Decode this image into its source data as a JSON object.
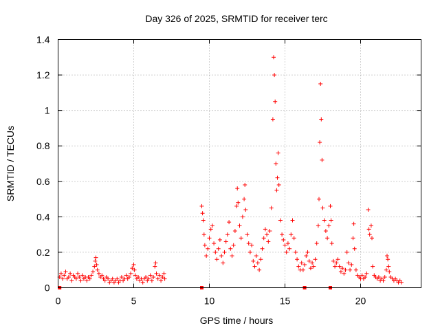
{
  "chart_data": {
    "type": "scatter",
    "title": "Day 326 of 2025, SRMTID for receiver terc",
    "xlabel": "GPS time / hours",
    "ylabel": "SRMTID / TECUs",
    "xlim": [
      0,
      24
    ],
    "ylim": [
      0,
      1.4
    ],
    "xticks": [
      0,
      5,
      10,
      15,
      20
    ],
    "xtick_labels": [
      "0",
      "5",
      "10",
      "15",
      "20"
    ],
    "yticks": [
      0,
      0.2,
      0.4,
      0.6,
      0.8,
      1.0,
      1.2,
      1.4
    ],
    "ytick_labels": [
      "0",
      "0.2",
      "0.4",
      "0.6",
      "0.8",
      "1",
      "1.2",
      "1.4"
    ],
    "grid": true,
    "marker": "+",
    "color": "#ff0000",
    "series": [
      {
        "name": "SRMTID",
        "points": [
          [
            0.1,
            0.06
          ],
          [
            0.2,
            0.08
          ],
          [
            0.3,
            0.05
          ],
          [
            0.4,
            0.07
          ],
          [
            0.5,
            0.09
          ],
          [
            0.6,
            0.05
          ],
          [
            0.7,
            0.06
          ],
          [
            0.8,
            0.08
          ],
          [
            0.9,
            0.04
          ],
          [
            1.0,
            0.07
          ],
          [
            1.1,
            0.06
          ],
          [
            1.2,
            0.05
          ],
          [
            1.3,
            0.08
          ],
          [
            1.4,
            0.06
          ],
          [
            1.5,
            0.04
          ],
          [
            1.6,
            0.07
          ],
          [
            1.7,
            0.05
          ],
          [
            1.8,
            0.06
          ],
          [
            1.9,
            0.04
          ],
          [
            2.0,
            0.06
          ],
          [
            2.1,
            0.05
          ],
          [
            2.2,
            0.07
          ],
          [
            2.3,
            0.09
          ],
          [
            2.4,
            0.12
          ],
          [
            2.45,
            0.15
          ],
          [
            2.5,
            0.17
          ],
          [
            2.55,
            0.13
          ],
          [
            2.6,
            0.1
          ],
          [
            2.7,
            0.08
          ],
          [
            2.8,
            0.06
          ],
          [
            2.9,
            0.07
          ],
          [
            3.0,
            0.05
          ],
          [
            3.1,
            0.04
          ],
          [
            3.2,
            0.06
          ],
          [
            3.3,
            0.05
          ],
          [
            3.4,
            0.03
          ],
          [
            3.5,
            0.04
          ],
          [
            3.6,
            0.05
          ],
          [
            3.7,
            0.03
          ],
          [
            3.8,
            0.04
          ],
          [
            3.9,
            0.05
          ],
          [
            4.0,
            0.03
          ],
          [
            4.1,
            0.04
          ],
          [
            4.2,
            0.06
          ],
          [
            4.3,
            0.04
          ],
          [
            4.4,
            0.05
          ],
          [
            4.5,
            0.07
          ],
          [
            4.6,
            0.05
          ],
          [
            4.7,
            0.06
          ],
          [
            4.8,
            0.08
          ],
          [
            4.9,
            0.11
          ],
          [
            5.0,
            0.13
          ],
          [
            5.05,
            0.1
          ],
          [
            5.1,
            0.07
          ],
          [
            5.2,
            0.05
          ],
          [
            5.3,
            0.06
          ],
          [
            5.4,
            0.04
          ],
          [
            5.5,
            0.05
          ],
          [
            5.6,
            0.03
          ],
          [
            5.7,
            0.05
          ],
          [
            5.8,
            0.06
          ],
          [
            5.9,
            0.04
          ],
          [
            6.0,
            0.05
          ],
          [
            6.1,
            0.07
          ],
          [
            6.2,
            0.04
          ],
          [
            6.3,
            0.06
          ],
          [
            6.4,
            0.12
          ],
          [
            6.45,
            0.14
          ],
          [
            6.5,
            0.08
          ],
          [
            6.6,
            0.05
          ],
          [
            6.7,
            0.07
          ],
          [
            6.8,
            0.04
          ],
          [
            6.9,
            0.06
          ],
          [
            7.0,
            0.08
          ],
          [
            7.05,
            0.05
          ],
          [
            9.5,
            0.46
          ],
          [
            9.55,
            0.42
          ],
          [
            9.6,
            0.38
          ],
          [
            9.65,
            0.3
          ],
          [
            9.7,
            0.24
          ],
          [
            9.8,
            0.18
          ],
          [
            9.9,
            0.22
          ],
          [
            10.0,
            0.28
          ],
          [
            10.1,
            0.33
          ],
          [
            10.2,
            0.35
          ],
          [
            10.3,
            0.25
          ],
          [
            10.4,
            0.2
          ],
          [
            10.5,
            0.16
          ],
          [
            10.6,
            0.22
          ],
          [
            10.7,
            0.27
          ],
          [
            10.8,
            0.18
          ],
          [
            10.9,
            0.14
          ],
          [
            11.0,
            0.2
          ],
          [
            11.1,
            0.26
          ],
          [
            11.2,
            0.3
          ],
          [
            11.3,
            0.37
          ],
          [
            11.4,
            0.22
          ],
          [
            11.5,
            0.18
          ],
          [
            11.6,
            0.24
          ],
          [
            11.7,
            0.32
          ],
          [
            11.8,
            0.46
          ],
          [
            11.85,
            0.56
          ],
          [
            11.9,
            0.48
          ],
          [
            12.0,
            0.35
          ],
          [
            12.1,
            0.28
          ],
          [
            12.2,
            0.4
          ],
          [
            12.3,
            0.5
          ],
          [
            12.35,
            0.58
          ],
          [
            12.4,
            0.44
          ],
          [
            12.5,
            0.3
          ],
          [
            12.6,
            0.25
          ],
          [
            12.7,
            0.2
          ],
          [
            12.8,
            0.24
          ],
          [
            12.9,
            0.15
          ],
          [
            13.0,
            0.12
          ],
          [
            13.1,
            0.18
          ],
          [
            13.2,
            0.14
          ],
          [
            13.3,
            0.1
          ],
          [
            13.4,
            0.16
          ],
          [
            13.5,
            0.22
          ],
          [
            13.6,
            0.28
          ],
          [
            13.7,
            0.33
          ],
          [
            13.8,
            0.3
          ],
          [
            13.9,
            0.26
          ],
          [
            14.0,
            0.32
          ],
          [
            14.1,
            0.45
          ],
          [
            14.2,
            0.95
          ],
          [
            14.25,
            1.3
          ],
          [
            14.3,
            1.2
          ],
          [
            14.35,
            1.05
          ],
          [
            14.4,
            0.7
          ],
          [
            14.45,
            0.55
          ],
          [
            14.5,
            0.62
          ],
          [
            14.55,
            0.76
          ],
          [
            14.6,
            0.58
          ],
          [
            14.7,
            0.38
          ],
          [
            14.8,
            0.3
          ],
          [
            14.9,
            0.27
          ],
          [
            15.0,
            0.24
          ],
          [
            15.1,
            0.2
          ],
          [
            15.2,
            0.25
          ],
          [
            15.3,
            0.22
          ],
          [
            15.4,
            0.3
          ],
          [
            15.5,
            0.38
          ],
          [
            15.6,
            0.28
          ],
          [
            15.7,
            0.2
          ],
          [
            15.8,
            0.16
          ],
          [
            15.9,
            0.12
          ],
          [
            16.0,
            0.1
          ],
          [
            16.1,
            0.14
          ],
          [
            16.2,
            0.1
          ],
          [
            16.3,
            0.13
          ],
          [
            16.4,
            0.18
          ],
          [
            16.5,
            0.2
          ],
          [
            16.6,
            0.15
          ],
          [
            16.7,
            0.11
          ],
          [
            16.8,
            0.14
          ],
          [
            16.9,
            0.12
          ],
          [
            17.0,
            0.16
          ],
          [
            17.1,
            0.25
          ],
          [
            17.2,
            0.35
          ],
          [
            17.25,
            0.5
          ],
          [
            17.3,
            0.82
          ],
          [
            17.35,
            1.15
          ],
          [
            17.4,
            0.95
          ],
          [
            17.45,
            0.72
          ],
          [
            17.5,
            0.45
          ],
          [
            17.6,
            0.38
          ],
          [
            17.7,
            0.32
          ],
          [
            17.8,
            0.28
          ],
          [
            17.9,
            0.35
          ],
          [
            18.0,
            0.46
          ],
          [
            18.05,
            0.38
          ],
          [
            18.1,
            0.25
          ],
          [
            18.2,
            0.15
          ],
          [
            18.3,
            0.12
          ],
          [
            18.4,
            0.14
          ],
          [
            18.5,
            0.16
          ],
          [
            18.6,
            0.12
          ],
          [
            18.7,
            0.09
          ],
          [
            18.8,
            0.11
          ],
          [
            18.9,
            0.08
          ],
          [
            19.0,
            0.1
          ],
          [
            19.1,
            0.2
          ],
          [
            19.2,
            0.14
          ],
          [
            19.3,
            0.1
          ],
          [
            19.4,
            0.13
          ],
          [
            19.5,
            0.28
          ],
          [
            19.55,
            0.36
          ],
          [
            19.6,
            0.22
          ],
          [
            19.7,
            0.1
          ],
          [
            19.8,
            0.07
          ],
          [
            19.9,
            0.06
          ],
          [
            20.0,
            0.05
          ],
          [
            20.1,
            0.07
          ],
          [
            20.2,
            0.05
          ],
          [
            20.3,
            0.06
          ],
          [
            20.4,
            0.08
          ],
          [
            20.5,
            0.44
          ],
          [
            20.55,
            0.33
          ],
          [
            20.6,
            0.3
          ],
          [
            20.7,
            0.35
          ],
          [
            20.75,
            0.28
          ],
          [
            20.8,
            0.12
          ],
          [
            20.9,
            0.07
          ],
          [
            21.0,
            0.06
          ],
          [
            21.1,
            0.05
          ],
          [
            21.2,
            0.06
          ],
          [
            21.3,
            0.04
          ],
          [
            21.4,
            0.05
          ],
          [
            21.5,
            0.04
          ],
          [
            21.6,
            0.06
          ],
          [
            21.7,
            0.1
          ],
          [
            21.75,
            0.18
          ],
          [
            21.8,
            0.16
          ],
          [
            21.85,
            0.12
          ],
          [
            21.9,
            0.09
          ],
          [
            22.0,
            0.06
          ],
          [
            22.1,
            0.05
          ],
          [
            22.2,
            0.04
          ],
          [
            22.3,
            0.05
          ],
          [
            22.4,
            0.04
          ],
          [
            22.5,
            0.03
          ],
          [
            22.6,
            0.04
          ],
          [
            22.7,
            0.03
          ]
        ]
      }
    ],
    "gap_markers_x": [
      0.1,
      9.5,
      16.3,
      18.0
    ]
  }
}
